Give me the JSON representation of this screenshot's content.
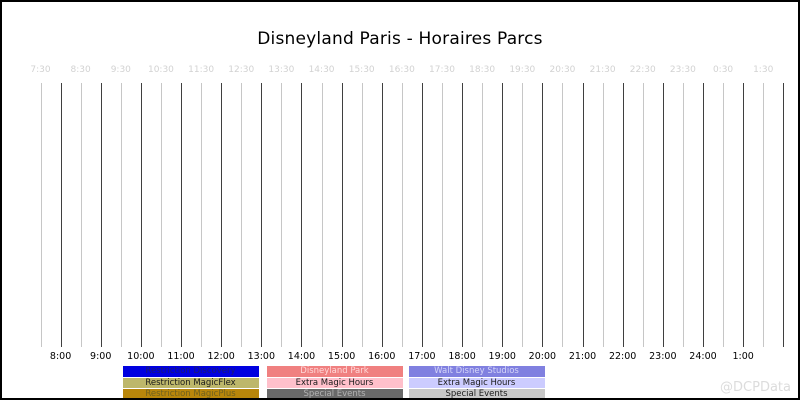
{
  "title": "Disneyland Paris - Horaires Parcs",
  "watermark": "@DCPData",
  "chart_data": {
    "type": "bar",
    "subtype": "horizontal-timeline-gantt (no bars plotted, empty schedule grid)",
    "title": "Disneyland Paris - Horaires Parcs",
    "xlabel": "",
    "ylabel": "",
    "x_axis_top_ticks": [
      "7:30",
      "8:30",
      "9:30",
      "10:30",
      "11:30",
      "12:30",
      "13:30",
      "14:30",
      "15:30",
      "16:30",
      "17:30",
      "18:30",
      "19:30",
      "20:30",
      "21:30",
      "22:30",
      "23:30",
      "0:30",
      "1:30"
    ],
    "x_axis_bottom_ticks": [
      "8:00",
      "9:00",
      "10:00",
      "11:00",
      "12:00",
      "13:00",
      "14:00",
      "15:00",
      "16:00",
      "17:00",
      "18:00",
      "19:00",
      "20:00",
      "21:00",
      "22:00",
      "23:00",
      "24:00",
      "1:00"
    ],
    "x_range_hours": [
      7.5,
      26.0
    ],
    "gridline_interval_hours": 0.5,
    "grid": "vertical-only, alternating light (half-hour) and dark (hour) lines",
    "series": [],
    "legend_position": "bottom",
    "legend_columns": [
      [
        {
          "label": "Restriction Discovery",
          "bg": "#0000e0",
          "fg": "#1c1c6e"
        },
        {
          "label": "Restriction MagicFlex",
          "bg": "#bdb76b",
          "fg": "#1a1a1a"
        },
        {
          "label": "Restriction MagicPlus",
          "bg": "#b8860b",
          "fg": "#71621f"
        }
      ],
      [
        {
          "label": "Disneyland Park",
          "bg": "#f08080",
          "fg": "#ffd8d8"
        },
        {
          "label": "Extra Magic Hours",
          "bg": "#ffc0cb",
          "fg": "#1a1a1a"
        },
        {
          "label": "Special Events",
          "bg": "#696969",
          "fg": "#b2b2b2"
        }
      ],
      [
        {
          "label": "Walt Disney Studios",
          "bg": "#8080e0",
          "fg": "#d4d4f8"
        },
        {
          "label": "Extra Magic Hours",
          "bg": "#ccccff",
          "fg": "#1a1a1a"
        },
        {
          "label": "Special Events",
          "bg": "#c8c8c8",
          "fg": "#1a1a1a"
        }
      ]
    ],
    "colors": {
      "background": "#ffffff",
      "border": "#000000",
      "gridline_dark": "#3f3f3f",
      "gridline_light": "#c6c6c6",
      "top_tick_text": "#d2d2d2",
      "bottom_tick_text": "#000000",
      "watermark_text": "#dcdcdc"
    }
  }
}
